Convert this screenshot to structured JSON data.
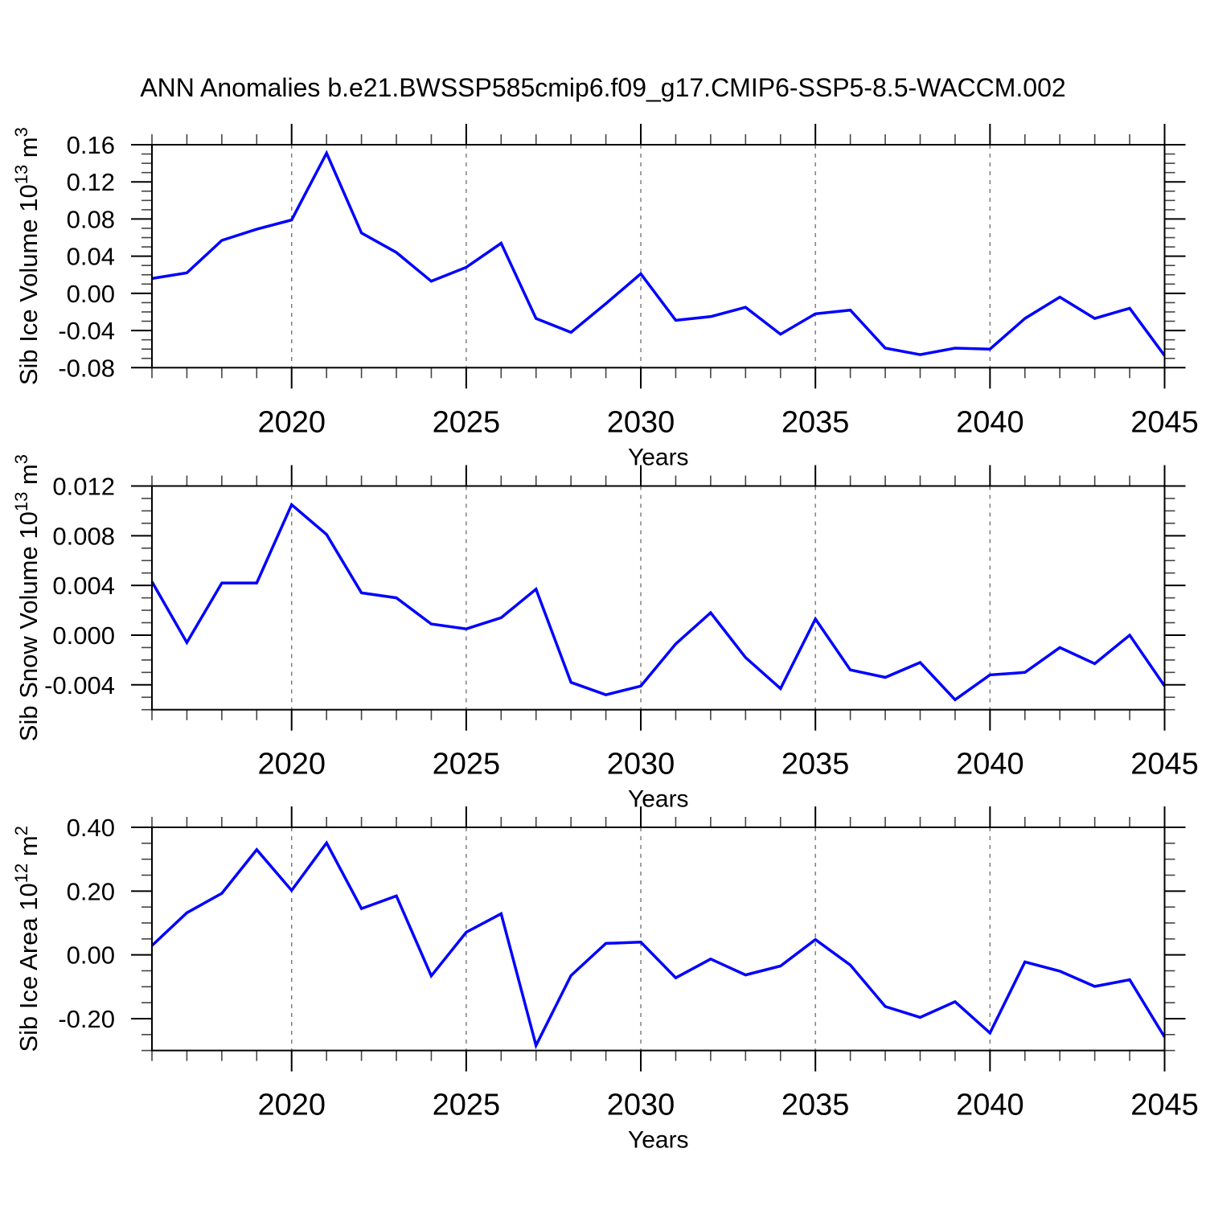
{
  "page": {
    "title": "ANN Anomalies b.e21.BWSSP585cmip6.f09_g17.CMIP6-SSP5-8.5-WACCM.002",
    "line_color": "#0000ff",
    "grid_color": "#777777",
    "frame_color": "#000000"
  },
  "chart_data": [
    {
      "type": "line",
      "title": "ANN Anomalies b.e21.BWSSP585cmip6.f09_g17.CMIP6-SSP5-8.5-WACCM.002",
      "ylabel_segments": [
        {
          "t": "Sib Ice Volume 10"
        },
        {
          "t": "13",
          "sup": true
        },
        {
          "t": " m"
        },
        {
          "t": "3",
          "sup": true
        }
      ],
      "ylabel_plain": "Sib Ice Volume 10^13 m^3",
      "xlabel": "Years",
      "x": [
        2016,
        2017,
        2018,
        2019,
        2020,
        2021,
        2022,
        2023,
        2024,
        2025,
        2026,
        2027,
        2028,
        2029,
        2030,
        2031,
        2032,
        2033,
        2034,
        2035,
        2036,
        2037,
        2038,
        2039,
        2040,
        2041,
        2042,
        2043,
        2044,
        2045
      ],
      "values": [
        0.016,
        0.022,
        0.057,
        0.069,
        0.079,
        0.151,
        0.065,
        0.044,
        0.013,
        0.028,
        0.054,
        -0.027,
        -0.042,
        -0.011,
        0.021,
        -0.029,
        -0.025,
        -0.015,
        -0.044,
        -0.022,
        -0.018,
        -0.059,
        -0.066,
        -0.059,
        -0.06,
        -0.027,
        -0.004,
        -0.027,
        -0.016,
        -0.067
      ],
      "xlim": [
        2016,
        2045
      ],
      "ylim": [
        -0.08,
        0.16
      ],
      "ytick_major_values": [
        0.16,
        0.12,
        0.08,
        0.04,
        0.0,
        -0.04,
        -0.08
      ],
      "ytick_labels": [
        "0.16",
        "0.12",
        "0.08",
        "0.04",
        "0.00",
        "-0.04",
        "-0.08"
      ],
      "ytick_minor_step": 0.01,
      "xtick_major_values": [
        2020,
        2025,
        2030,
        2035,
        2040,
        2045
      ],
      "xtick_labels": [
        "2020",
        "2025",
        "2030",
        "2035",
        "2040",
        "2045"
      ],
      "xtick_minor_step": 1,
      "grid_x_values": [
        2020,
        2025,
        2030,
        2035,
        2040
      ],
      "grid_style": "vertical-dashed",
      "legend": null
    },
    {
      "type": "line",
      "title": "",
      "ylabel_segments": [
        {
          "t": "Sib Snow Volume 10"
        },
        {
          "t": "13",
          "sup": true
        },
        {
          "t": " m"
        },
        {
          "t": "3",
          "sup": true
        }
      ],
      "ylabel_plain": "Sib Snow Volume 10^13 m^3",
      "xlabel": "Years",
      "x": [
        2016,
        2017,
        2018,
        2019,
        2020,
        2021,
        2022,
        2023,
        2024,
        2025,
        2026,
        2027,
        2028,
        2029,
        2030,
        2031,
        2032,
        2033,
        2034,
        2035,
        2036,
        2037,
        2038,
        2039,
        2040,
        2041,
        2042,
        2043,
        2044,
        2045
      ],
      "values": [
        0.0043,
        -0.0006,
        0.0042,
        0.0042,
        0.0105,
        0.0081,
        0.0034,
        0.003,
        0.0009,
        0.0005,
        0.0014,
        0.0037,
        -0.0038,
        -0.0048,
        -0.0041,
        -0.0007,
        0.0018,
        -0.0018,
        -0.0043,
        0.0013,
        -0.0028,
        -0.0034,
        -0.0022,
        -0.0052,
        -0.0032,
        -0.003,
        -0.001,
        -0.0023,
        0.0,
        -0.0041
      ],
      "xlim": [
        2016,
        2045
      ],
      "ylim": [
        -0.006,
        0.012
      ],
      "ytick_major_values": [
        0.012,
        0.008,
        0.004,
        0.0,
        -0.004
      ],
      "ytick_labels": [
        "0.012",
        "0.008",
        "0.004",
        "0.000",
        "-0.004"
      ],
      "ytick_minor_step": 0.001,
      "xtick_major_values": [
        2020,
        2025,
        2030,
        2035,
        2040,
        2045
      ],
      "xtick_labels": [
        "2020",
        "2025",
        "2030",
        "2035",
        "2040",
        "2045"
      ],
      "xtick_minor_step": 1,
      "grid_x_values": [
        2020,
        2025,
        2030,
        2035,
        2040
      ],
      "grid_style": "vertical-dashed",
      "legend": null
    },
    {
      "type": "line",
      "title": "",
      "ylabel_segments": [
        {
          "t": "Sib Ice Area 10"
        },
        {
          "t": "12",
          "sup": true
        },
        {
          "t": " m"
        },
        {
          "t": "2",
          "sup": true
        }
      ],
      "ylabel_plain": "Sib Ice Area 10^12 m^2",
      "xlabel": "Years",
      "x": [
        2016,
        2017,
        2018,
        2019,
        2020,
        2021,
        2022,
        2023,
        2024,
        2025,
        2026,
        2027,
        2028,
        2029,
        2030,
        2031,
        2032,
        2033,
        2034,
        2035,
        2036,
        2037,
        2038,
        2039,
        2040,
        2041,
        2042,
        2043,
        2044,
        2045
      ],
      "values": [
        0.029,
        0.132,
        0.193,
        0.33,
        0.202,
        0.351,
        0.145,
        0.185,
        -0.066,
        0.071,
        0.129,
        -0.284,
        -0.065,
        0.036,
        0.04,
        -0.072,
        -0.013,
        -0.063,
        -0.035,
        0.048,
        -0.032,
        -0.162,
        -0.196,
        -0.147,
        -0.245,
        -0.022,
        -0.051,
        -0.099,
        -0.078,
        -0.258
      ],
      "xlim": [
        2016,
        2045
      ],
      "ylim": [
        -0.3,
        0.4
      ],
      "ytick_major_values": [
        0.4,
        0.2,
        0.0,
        -0.2
      ],
      "ytick_labels": [
        "0.40",
        "0.20",
        "0.00",
        "-0.20"
      ],
      "ytick_minor_step": 0.05,
      "xtick_major_values": [
        2020,
        2025,
        2030,
        2035,
        2040,
        2045
      ],
      "xtick_labels": [
        "2020",
        "2025",
        "2030",
        "2035",
        "2040",
        "2045"
      ],
      "xtick_minor_step": 1,
      "grid_x_values": [
        2020,
        2025,
        2030,
        2035,
        2040
      ],
      "grid_style": "vertical-dashed",
      "legend": null
    }
  ]
}
